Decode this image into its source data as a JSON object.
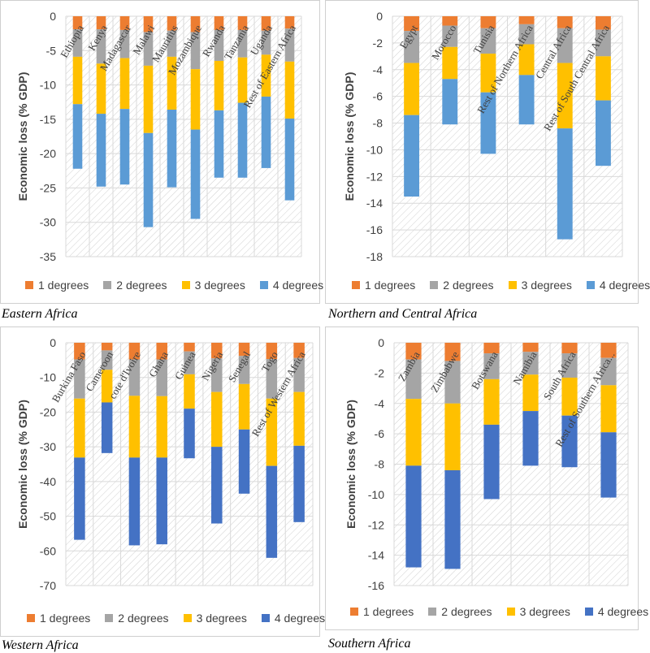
{
  "colors": {
    "d1": "#ED7D31",
    "d2": "#A5A5A5",
    "d3": "#FFC000",
    "d4_light": "#5B9BD5",
    "d4_dark": "#4472C4",
    "hatch": "#d0d0d0",
    "axis_text": "#404040"
  },
  "captions": {
    "eastern": "Eastern Africa",
    "northern": "Northern and Central Africa",
    "western": "Western Africa",
    "southern": "Southern Africa"
  },
  "chart_data": [
    {
      "id": "eastern",
      "type": "bar",
      "stacked": true,
      "title": "",
      "ylabel": "Economic loss (% GDP)",
      "ylim": [
        -35,
        0
      ],
      "yticks": [
        0,
        -5,
        -10,
        -15,
        -20,
        -25,
        -30,
        -35
      ],
      "categories": [
        "Ethiopia",
        "Kenya",
        "Madagascar",
        "Malawi",
        "Mauritius",
        "Mozambique",
        "Rwanda",
        "Tanzania",
        "Uganda",
        "Rest of Eastern Africa"
      ],
      "series": [
        {
          "name": "1 degrees",
          "key": "d1",
          "values": [
            -1.9,
            -1.9,
            -2.0,
            -2.3,
            -2.1,
            -2.3,
            -2.0,
            -2.0,
            -2.1,
            -1.8
          ]
        },
        {
          "name": "2 degrees",
          "key": "d2",
          "values": [
            -4.0,
            -5.0,
            -4.1,
            -4.9,
            -3.8,
            -5.4,
            -4.5,
            -4.0,
            -3.5,
            -4.8
          ]
        },
        {
          "name": "3 degrees",
          "key": "d3",
          "values": [
            -6.9,
            -7.3,
            -7.4,
            -9.8,
            -7.7,
            -8.8,
            -7.2,
            -6.6,
            -6.1,
            -8.3
          ]
        },
        {
          "name": "4 degrees",
          "key": "d4_light",
          "values": [
            -9.4,
            -10.6,
            -11.0,
            -13.7,
            -11.3,
            -13.0,
            -9.8,
            -10.9,
            -10.4,
            -11.9
          ]
        }
      ],
      "legend": [
        "1 degrees",
        "2 degrees",
        "3 degrees",
        "4 degrees"
      ]
    },
    {
      "id": "northern",
      "type": "bar",
      "stacked": true,
      "title": "",
      "ylabel": "Economic loss (% GDP)",
      "ylim": [
        -18,
        0
      ],
      "yticks": [
        0,
        -2,
        -4,
        -6,
        -8,
        -10,
        -12,
        -14,
        -16,
        -18
      ],
      "categories": [
        "Egypt",
        "Morocco",
        "Tunisia",
        "Rest of Northern Africa",
        "Central Africa",
        "Rest of South Central Africa"
      ],
      "series": [
        {
          "name": "1 degrees",
          "key": "d1",
          "values": [
            -1.1,
            -0.7,
            -0.9,
            -0.6,
            -0.9,
            -1.0
          ]
        },
        {
          "name": "2 degrees",
          "key": "d2",
          "values": [
            -2.4,
            -1.6,
            -1.9,
            -1.5,
            -2.6,
            -2.0
          ]
        },
        {
          "name": "3 degrees",
          "key": "d3",
          "values": [
            -3.9,
            -2.4,
            -2.9,
            -2.3,
            -4.9,
            -3.3
          ]
        },
        {
          "name": "4 degrees",
          "key": "d4_light",
          "values": [
            -6.1,
            -3.4,
            -4.6,
            -3.7,
            -8.3,
            -4.9
          ]
        }
      ],
      "legend": [
        "1 degrees",
        "2 degrees",
        "3 degrees",
        "4 degrees"
      ]
    },
    {
      "id": "western",
      "type": "bar",
      "stacked": true,
      "title": "",
      "ylabel": "Economic loss (% GDP)",
      "ylim": [
        -70,
        0
      ],
      "yticks": [
        0,
        -10,
        -20,
        -30,
        -40,
        -50,
        -60,
        -70
      ],
      "categories": [
        "Burkina Faso",
        "Cameroon",
        "cote d'Ivoire",
        "Ghana",
        "Guinea",
        "Nigeria",
        "Senegal",
        "Togo",
        "Rest of Western Africa"
      ],
      "series": [
        {
          "name": "1 degrees",
          "key": "d1",
          "values": [
            -4.8,
            -2.2,
            -4.8,
            -4.8,
            -2.5,
            -4.5,
            -3.8,
            -4.7,
            -4.4
          ]
        },
        {
          "name": "2 degrees",
          "key": "d2",
          "values": [
            -11.3,
            -5.6,
            -10.5,
            -10.6,
            -6.6,
            -9.7,
            -8.1,
            -11.4,
            -9.8
          ]
        },
        {
          "name": "3 degrees",
          "key": "d3",
          "values": [
            -17.0,
            -9.4,
            -17.8,
            -17.7,
            -9.9,
            -15.8,
            -13.1,
            -19.4,
            -15.5
          ]
        },
        {
          "name": "4 degrees",
          "key": "d4_dark",
          "values": [
            -23.7,
            -14.6,
            -25.3,
            -25.0,
            -14.3,
            -22.1,
            -18.5,
            -26.5,
            -22.0
          ]
        }
      ],
      "legend": [
        "1 degrees",
        "2 degrees",
        "3 degrees",
        "4 degrees"
      ]
    },
    {
      "id": "southern",
      "type": "bar",
      "stacked": true,
      "title": "",
      "ylabel": "Economic loss (% GDP)",
      "ylim": [
        -16,
        0
      ],
      "yticks": [
        0,
        -2,
        -4,
        -6,
        -8,
        -10,
        -12,
        -14,
        -16
      ],
      "categories": [
        "Zambia",
        "Zimbabwe",
        "Botswana",
        "Namibia",
        "South Africa",
        "Rest of Southern Africa..."
      ],
      "series": [
        {
          "name": "1 degrees",
          "key": "d1",
          "values": [
            -1.1,
            -1.2,
            -0.7,
            -0.6,
            -0.7,
            -1.0
          ]
        },
        {
          "name": "2 degrees",
          "key": "d2",
          "values": [
            -2.6,
            -2.8,
            -1.7,
            -1.5,
            -1.6,
            -1.8
          ]
        },
        {
          "name": "3 degrees",
          "key": "d3",
          "values": [
            -4.4,
            -4.4,
            -3.0,
            -2.4,
            -2.5,
            -3.1
          ]
        },
        {
          "name": "4 degrees",
          "key": "d4_dark",
          "values": [
            -6.7,
            -6.5,
            -4.9,
            -3.6,
            -3.4,
            -4.3
          ]
        }
      ],
      "legend": [
        "1 degrees",
        "2 degrees",
        "3 degrees",
        "4 degrees"
      ]
    }
  ]
}
